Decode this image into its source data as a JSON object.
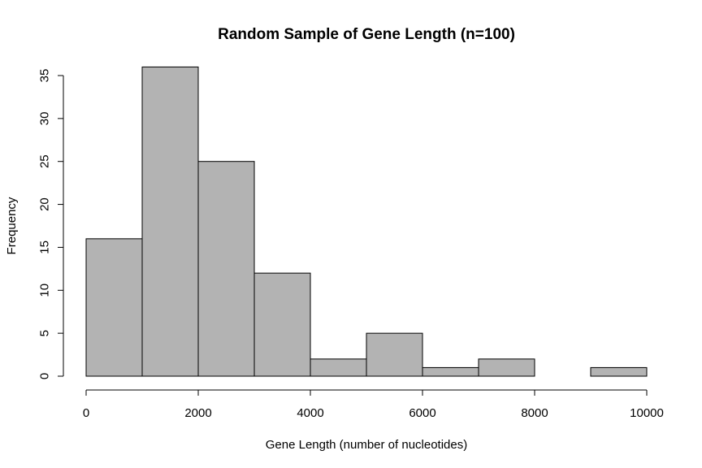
{
  "chart_data": {
    "type": "bar",
    "title": "Random Sample of Gene Length (n=100)",
    "xlabel": "Gene Length (number of nucleotides)",
    "ylabel": "Frequency",
    "bins": [
      {
        "x0": 0,
        "x1": 1000,
        "count": 16
      },
      {
        "x0": 1000,
        "x1": 2000,
        "count": 36
      },
      {
        "x0": 2000,
        "x1": 3000,
        "count": 25
      },
      {
        "x0": 3000,
        "x1": 4000,
        "count": 12
      },
      {
        "x0": 4000,
        "x1": 5000,
        "count": 2
      },
      {
        "x0": 5000,
        "x1": 6000,
        "count": 5
      },
      {
        "x0": 6000,
        "x1": 7000,
        "count": 1
      },
      {
        "x0": 7000,
        "x1": 8000,
        "count": 2
      },
      {
        "x0": 8000,
        "x1": 9000,
        "count": 0
      },
      {
        "x0": 9000,
        "x1": 10000,
        "count": 1
      }
    ],
    "xlim": [
      0,
      10000
    ],
    "ylim": [
      0,
      35
    ],
    "xticks": [
      0,
      2000,
      4000,
      6000,
      8000,
      10000
    ],
    "yticks": [
      0,
      5,
      10,
      15,
      20,
      25,
      30,
      35
    ],
    "bar_color": "#b3b3b3",
    "grid": false,
    "legend": "none"
  }
}
